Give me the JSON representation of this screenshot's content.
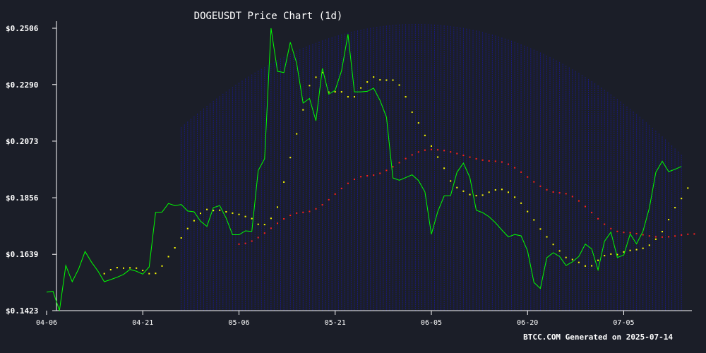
{
  "chart_data": {
    "type": "line",
    "title": "DOGEUSDT Price Chart (1d)",
    "footer": "BTCC.COM Generated on 2025-07-14",
    "y_ticks": [
      "$0.2506",
      "$0.2290",
      "$0.2073",
      "$0.1856",
      "$0.1639",
      "$0.1423"
    ],
    "ylim": [
      0.1423,
      0.2506
    ],
    "x_ticks": [
      "04-06",
      "04-21",
      "05-06",
      "05-21",
      "06-05",
      "06-20",
      "07-05"
    ],
    "x_start": "2025-04-06",
    "x_end": "2025-07-14",
    "grid": false,
    "colors": {
      "price": "#00ff00",
      "ma_short": "#ffff00",
      "ma_long": "#ff2020",
      "band": "#1a1a8c",
      "axis": "#ffffff"
    },
    "price": [
      [
        "2025-04-06",
        0.1494
      ],
      [
        "2025-04-07",
        0.1497
      ],
      [
        "2025-04-08",
        0.1423
      ],
      [
        "2025-04-09",
        0.1596
      ],
      [
        "2025-04-10",
        0.1534
      ],
      [
        "2025-04-11",
        0.1583
      ],
      [
        "2025-04-12",
        0.165
      ],
      [
        "2025-04-13",
        0.1609
      ],
      [
        "2025-04-14",
        0.1575
      ],
      [
        "2025-04-15",
        0.1534
      ],
      [
        "2025-04-16",
        0.1542
      ],
      [
        "2025-04-17",
        0.1551
      ],
      [
        "2025-04-18",
        0.1562
      ],
      [
        "2025-04-19",
        0.1581
      ],
      [
        "2025-04-20",
        0.1574
      ],
      [
        "2025-04-21",
        0.1563
      ],
      [
        "2025-04-22",
        0.1591
      ],
      [
        "2025-04-23",
        0.18
      ],
      [
        "2025-04-24",
        0.1801
      ],
      [
        "2025-04-25",
        0.1834
      ],
      [
        "2025-04-26",
        0.1826
      ],
      [
        "2025-04-27",
        0.183
      ],
      [
        "2025-04-28",
        0.1805
      ],
      [
        "2025-04-29",
        0.1802
      ],
      [
        "2025-04-30",
        0.1766
      ],
      [
        "2025-05-01",
        0.1746
      ],
      [
        "2025-05-02",
        0.1818
      ],
      [
        "2025-05-03",
        0.1826
      ],
      [
        "2025-05-04",
        0.1778
      ],
      [
        "2025-05-05",
        0.1714
      ],
      [
        "2025-05-06",
        0.1714
      ],
      [
        "2025-05-07",
        0.1729
      ],
      [
        "2025-05-08",
        0.1727
      ],
      [
        "2025-05-09",
        0.196
      ],
      [
        "2025-05-10",
        0.2006
      ],
      [
        "2025-05-11",
        0.2506
      ],
      [
        "2025-05-12",
        0.2341
      ],
      [
        "2025-05-13",
        0.2336
      ],
      [
        "2025-05-14",
        0.2452
      ],
      [
        "2025-05-15",
        0.2372
      ],
      [
        "2025-05-16",
        0.2219
      ],
      [
        "2025-05-17",
        0.2237
      ],
      [
        "2025-05-18",
        0.2151
      ],
      [
        "2025-05-19",
        0.2352
      ],
      [
        "2025-05-20",
        0.2253
      ],
      [
        "2025-05-21",
        0.2268
      ],
      [
        "2025-05-22",
        0.2343
      ],
      [
        "2025-05-23",
        0.2483
      ],
      [
        "2025-05-24",
        0.2262
      ],
      [
        "2025-05-25",
        0.2262
      ],
      [
        "2025-05-26",
        0.2264
      ],
      [
        "2025-05-27",
        0.2276
      ],
      [
        "2025-05-28",
        0.2229
      ],
      [
        "2025-05-29",
        0.2165
      ],
      [
        "2025-05-30",
        0.1932
      ],
      [
        "2025-05-31",
        0.1923
      ],
      [
        "2025-06-01",
        0.1933
      ],
      [
        "2025-06-02",
        0.1944
      ],
      [
        "2025-06-03",
        0.1922
      ],
      [
        "2025-06-04",
        0.1878
      ],
      [
        "2025-06-05",
        0.1716
      ],
      [
        "2025-06-06",
        0.1803
      ],
      [
        "2025-06-07",
        0.1863
      ],
      [
        "2025-06-08",
        0.1864
      ],
      [
        "2025-06-09",
        0.1954
      ],
      [
        "2025-06-10",
        0.1989
      ],
      [
        "2025-06-11",
        0.1934
      ],
      [
        "2025-06-12",
        0.1808
      ],
      [
        "2025-06-13",
        0.1799
      ],
      [
        "2025-06-14",
        0.1783
      ],
      [
        "2025-06-15",
        0.176
      ],
      [
        "2025-06-16",
        0.1732
      ],
      [
        "2025-06-17",
        0.1706
      ],
      [
        "2025-06-18",
        0.1715
      ],
      [
        "2025-06-19",
        0.171
      ],
      [
        "2025-06-20",
        0.1653
      ],
      [
        "2025-06-21",
        0.1531
      ],
      [
        "2025-06-22",
        0.1508
      ],
      [
        "2025-06-23",
        0.1626
      ],
      [
        "2025-06-24",
        0.1645
      ],
      [
        "2025-06-25",
        0.1631
      ],
      [
        "2025-06-26",
        0.1596
      ],
      [
        "2025-06-27",
        0.161
      ],
      [
        "2025-06-28",
        0.1631
      ],
      [
        "2025-06-29",
        0.1678
      ],
      [
        "2025-06-30",
        0.166
      ],
      [
        "2025-07-01",
        0.1579
      ],
      [
        "2025-07-02",
        0.1689
      ],
      [
        "2025-07-03",
        0.1724
      ],
      [
        "2025-07-04",
        0.1627
      ],
      [
        "2025-07-05",
        0.1636
      ],
      [
        "2025-07-06",
        0.1717
      ],
      [
        "2025-07-07",
        0.1679
      ],
      [
        "2025-07-08",
        0.1727
      ],
      [
        "2025-07-09",
        0.1817
      ],
      [
        "2025-07-10",
        0.1953
      ],
      [
        "2025-07-11",
        0.1996
      ],
      [
        "2025-07-12",
        0.1956
      ],
      [
        "2025-07-13",
        0.1965
      ],
      [
        "2025-07-14",
        0.1976
      ]
    ],
    "ma_short": [
      [
        "2025-04-15",
        0.1565
      ],
      [
        "2025-04-16",
        0.158
      ],
      [
        "2025-04-17",
        0.1588
      ],
      [
        "2025-04-18",
        0.1586
      ],
      [
        "2025-04-19",
        0.1587
      ],
      [
        "2025-04-20",
        0.1586
      ],
      [
        "2025-04-21",
        0.1577
      ],
      [
        "2025-04-22",
        0.1565
      ],
      [
        "2025-04-23",
        0.1566
      ],
      [
        "2025-04-24",
        0.1594
      ],
      [
        "2025-04-25",
        0.163
      ],
      [
        "2025-04-26",
        0.1664
      ],
      [
        "2025-04-27",
        0.1702
      ],
      [
        "2025-04-28",
        0.1738
      ],
      [
        "2025-04-29",
        0.1768
      ],
      [
        "2025-04-30",
        0.1796
      ],
      [
        "2025-05-01",
        0.1811
      ],
      [
        "2025-05-02",
        0.1807
      ],
      [
        "2025-05-03",
        0.1808
      ],
      [
        "2025-05-04",
        0.1802
      ],
      [
        "2025-05-05",
        0.1797
      ],
      [
        "2025-05-06",
        0.1792
      ],
      [
        "2025-05-07",
        0.1784
      ],
      [
        "2025-05-08",
        0.1776
      ],
      [
        "2025-05-09",
        0.1754
      ],
      [
        "2025-05-10",
        0.1753
      ],
      [
        "2025-05-11",
        0.1777
      ],
      [
        "2025-05-12",
        0.182
      ],
      [
        "2025-05-13",
        0.1916
      ],
      [
        "2025-05-14",
        0.201
      ],
      [
        "2025-05-15",
        0.2101
      ],
      [
        "2025-05-16",
        0.2193
      ],
      [
        "2025-05-17",
        0.2286
      ],
      [
        "2025-05-18",
        0.2318
      ],
      [
        "2025-05-19",
        0.2336
      ],
      [
        "2025-05-20",
        0.2261
      ],
      [
        "2025-05-21",
        0.2262
      ],
      [
        "2025-05-22",
        0.2262
      ],
      [
        "2025-05-23",
        0.2243
      ],
      [
        "2025-05-24",
        0.2243
      ],
      [
        "2025-05-25",
        0.2277
      ],
      [
        "2025-05-26",
        0.23
      ],
      [
        "2025-05-27",
        0.2319
      ],
      [
        "2025-05-28",
        0.2308
      ],
      [
        "2025-05-29",
        0.2307
      ],
      [
        "2025-05-30",
        0.2307
      ],
      [
        "2025-05-31",
        0.2288
      ],
      [
        "2025-06-01",
        0.2243
      ],
      [
        "2025-06-02",
        0.2184
      ],
      [
        "2025-06-03",
        0.2143
      ],
      [
        "2025-06-04",
        0.2095
      ],
      [
        "2025-06-05",
        0.2054
      ],
      [
        "2025-06-06",
        0.2012
      ],
      [
        "2025-06-07",
        0.1969
      ],
      [
        "2025-06-08",
        0.192
      ],
      [
        "2025-06-09",
        0.1895
      ],
      [
        "2025-06-10",
        0.1881
      ],
      [
        "2025-06-11",
        0.1868
      ],
      [
        "2025-06-12",
        0.1864
      ],
      [
        "2025-06-13",
        0.1866
      ],
      [
        "2025-06-14",
        0.1877
      ],
      [
        "2025-06-15",
        0.1886
      ],
      [
        "2025-06-16",
        0.1888
      ],
      [
        "2025-06-17",
        0.1877
      ],
      [
        "2025-06-18",
        0.1858
      ],
      [
        "2025-06-19",
        0.1835
      ],
      [
        "2025-06-20",
        0.1803
      ],
      [
        "2025-06-21",
        0.1771
      ],
      [
        "2025-06-22",
        0.1736
      ],
      [
        "2025-06-23",
        0.1706
      ],
      [
        "2025-06-24",
        0.1677
      ],
      [
        "2025-06-25",
        0.1652
      ],
      [
        "2025-06-26",
        0.1627
      ],
      [
        "2025-06-27",
        0.1619
      ],
      [
        "2025-06-28",
        0.1608
      ],
      [
        "2025-06-29",
        0.1594
      ],
      [
        "2025-06-30",
        0.1595
      ],
      [
        "2025-07-01",
        0.1616
      ],
      [
        "2025-07-02",
        0.1634
      ],
      [
        "2025-07-03",
        0.164
      ],
      [
        "2025-07-04",
        0.1638
      ],
      [
        "2025-07-05",
        0.1648
      ],
      [
        "2025-07-06",
        0.1654
      ],
      [
        "2025-07-07",
        0.1657
      ],
      [
        "2025-07-08",
        0.1662
      ],
      [
        "2025-07-09",
        0.1674
      ],
      [
        "2025-07-10",
        0.1697
      ],
      [
        "2025-07-11",
        0.1726
      ],
      [
        "2025-07-12",
        0.1772
      ],
      [
        "2025-07-13",
        0.1818
      ],
      [
        "2025-07-14",
        0.1853
      ],
      [
        "2025-07-15",
        0.1893
      ]
    ],
    "ma_long": {
      "start": "2025-05-06",
      "end": "2025-07-16",
      "points": [
        [
          "2025-05-06",
          0.1678
        ],
        [
          "2025-05-16",
          0.18
        ],
        [
          "2025-05-26",
          0.194
        ],
        [
          "2025-06-05",
          0.2041
        ],
        [
          "2025-06-15",
          0.1996
        ],
        [
          "2025-06-25",
          0.1875
        ],
        [
          "2025-07-05",
          0.1723
        ],
        [
          "2025-07-11",
          0.1705
        ],
        [
          "2025-07-16",
          0.1717
        ]
      ]
    }
  }
}
